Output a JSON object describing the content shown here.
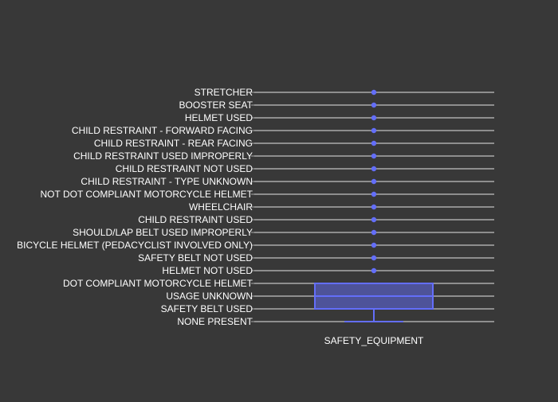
{
  "chart_data": {
    "type": "box",
    "orientation": "horizontal",
    "xlabel": "SAFETY_EQUIPMENT",
    "categories": [
      "NONE PRESENT",
      "SAFETY BELT USED",
      "USAGE UNKNOWN",
      "DOT COMPLIANT MOTORCYCLE HELMET",
      "HELMET NOT USED",
      "SAFETY BELT NOT USED",
      "BICYCLE HELMET (PEDACYCLIST INVOLVED ONLY)",
      "SHOULD/LAP BELT USED IMPROPERLY",
      "CHILD RESTRAINT USED",
      "WHEELCHAIR",
      "NOT DOT COMPLIANT MOTORCYCLE HELMET",
      "CHILD RESTRAINT - TYPE UNKNOWN",
      "CHILD RESTRAINT NOT USED",
      "CHILD RESTRAINT USED IMPROPERLY",
      "CHILD RESTRAINT - REAR FACING",
      "CHILD RESTRAINT - FORWARD FACING",
      "HELMET USED",
      "BOOSTER SEAT",
      "STRETCHER"
    ],
    "box": {
      "lowerfence": 0,
      "q1": 1,
      "median": 2,
      "q3": 3,
      "upperfence": 3
    },
    "points": [
      4,
      5,
      6,
      7,
      8,
      9,
      10,
      11,
      12,
      13,
      14,
      15,
      16,
      17,
      18
    ],
    "colors": {
      "background": "#383838",
      "gridline": "#aaaaaa",
      "box_line": "#636efa",
      "box_fill": "#636efa",
      "text": "#ffffff"
    }
  }
}
